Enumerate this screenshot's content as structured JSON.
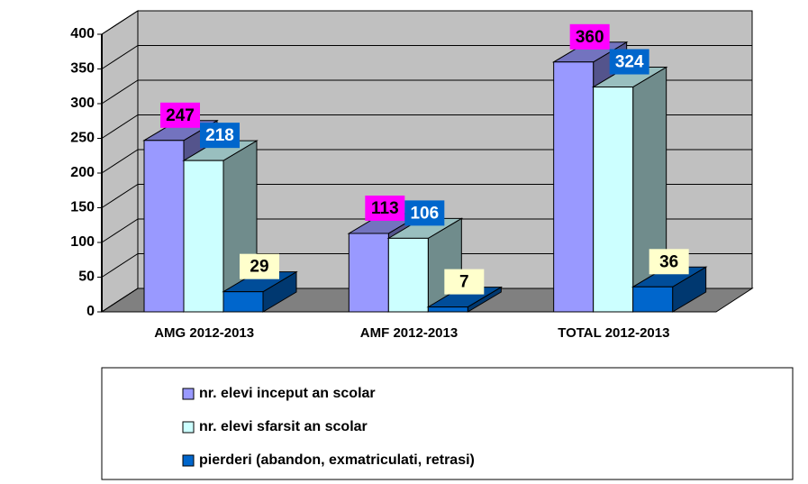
{
  "chart_data": {
    "type": "bar3d",
    "categories": [
      "AMG 2012-2013",
      "AMF 2012-2013",
      "TOTAL 2012-2013"
    ],
    "series": [
      {
        "name": "nr. elevi inceput an scolar",
        "color": "#9999ff",
        "label_color": "#ff00ff",
        "label_text_color": "#000000",
        "values": [
          247,
          113,
          360
        ]
      },
      {
        "name": "nr. elevi sfarsit an scolar",
        "color": "#ccffff",
        "label_color": "#0066cc",
        "label_text_color": "#ffffff",
        "values": [
          218,
          106,
          324
        ]
      },
      {
        "name": "pierderi (abandon, exmatriculati, retrasi)",
        "color": "#0066cc",
        "label_color": "#ffffcc",
        "label_text_color": "#000000",
        "values": [
          29,
          7,
          36
        ]
      }
    ],
    "ylim": [
      0,
      400
    ],
    "yticks": [
      0,
      50,
      100,
      150,
      200,
      250,
      300,
      350,
      400
    ],
    "grid": true,
    "legend": "bottom"
  }
}
